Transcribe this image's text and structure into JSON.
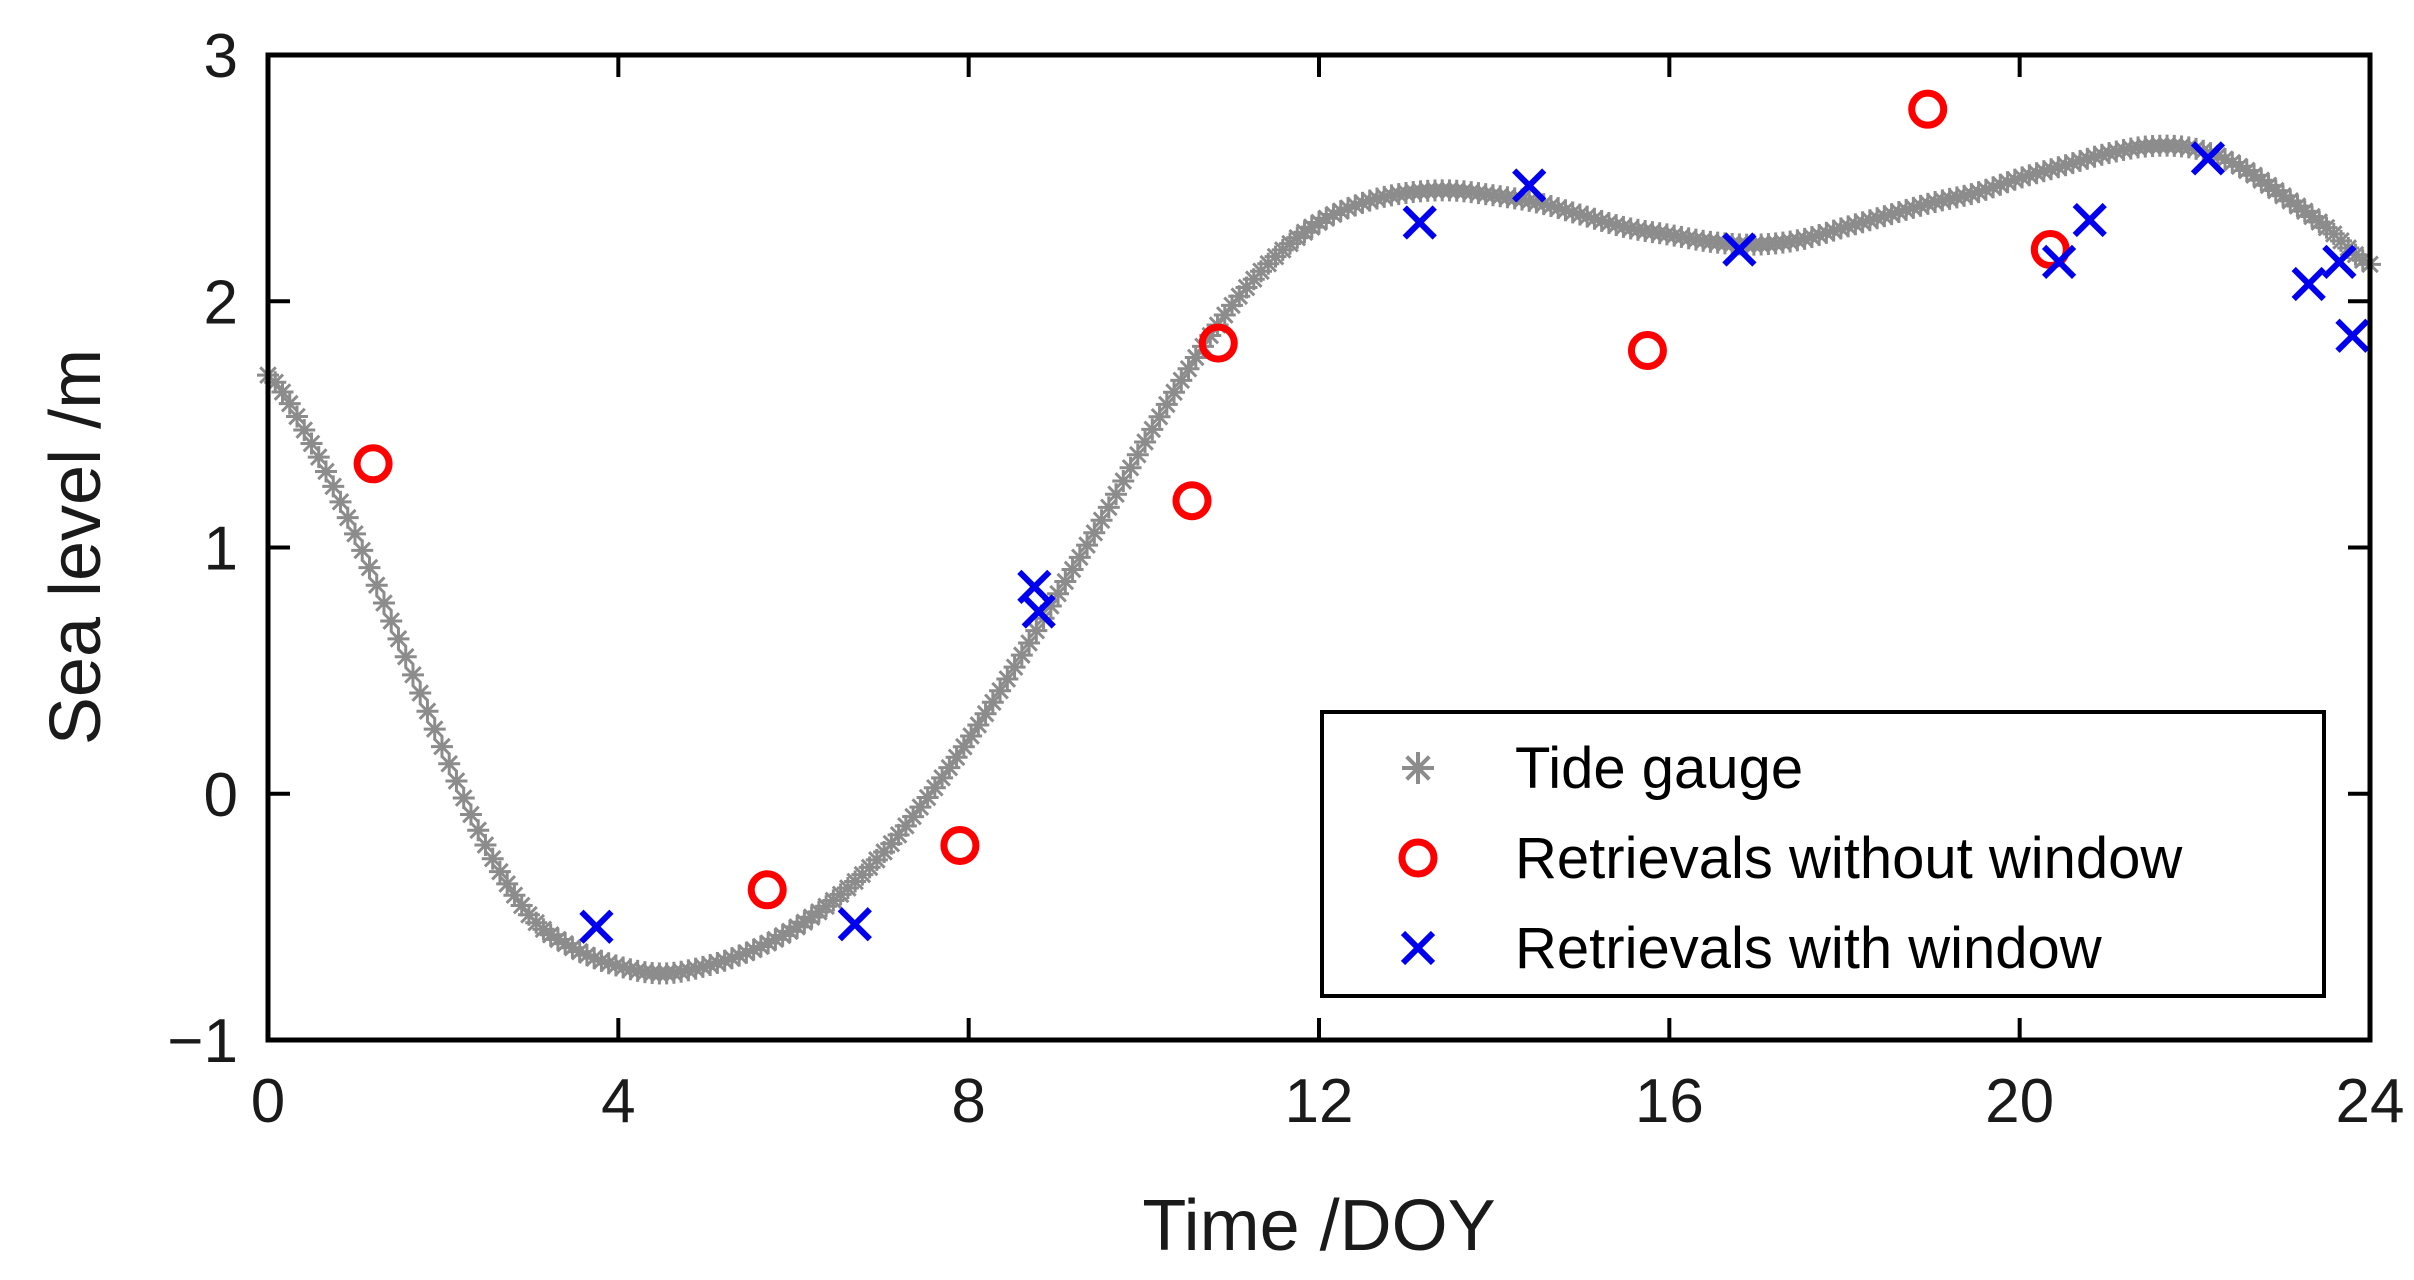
{
  "chart_data": {
    "type": "scatter",
    "title": "",
    "xlabel": "Time /DOY",
    "ylabel": "Sea level /m",
    "xlim": [
      0,
      24
    ],
    "ylim": [
      -1,
      3
    ],
    "xticks": [
      0,
      4,
      8,
      12,
      16,
      20,
      24
    ],
    "xtick_labels": [
      "0",
      "4",
      "8",
      "12",
      "16",
      "20",
      "24"
    ],
    "yticks": [
      -1,
      0,
      1,
      2,
      3
    ],
    "ytick_labels": [
      "−1",
      "0",
      "1",
      "2",
      "3"
    ],
    "grid": false,
    "legend_position": "bottom-right",
    "series": [
      {
        "name": "Tide gauge",
        "marker": "asterisk",
        "color": "#8c8c8c",
        "x": [
          0.0,
          0.5,
          1.0,
          1.5,
          2.0,
          2.5,
          3.0,
          3.5,
          4.0,
          4.5,
          5.0,
          5.5,
          6.0,
          6.5,
          7.0,
          7.5,
          8.0,
          8.5,
          9.0,
          9.5,
          10.0,
          10.5,
          11.0,
          11.5,
          12.0,
          12.5,
          13.0,
          13.5,
          14.0,
          14.5,
          15.0,
          15.5,
          16.0,
          16.5,
          17.0,
          17.5,
          18.0,
          18.5,
          19.0,
          19.5,
          20.0,
          20.5,
          21.0,
          21.5,
          22.0,
          22.5,
          23.0,
          23.5,
          24.0
        ],
        "y": [
          1.7,
          1.42,
          1.05,
          0.62,
          0.18,
          -0.22,
          -0.5,
          -0.63,
          -0.7,
          -0.73,
          -0.7,
          -0.64,
          -0.55,
          -0.42,
          -0.25,
          -0.03,
          0.22,
          0.5,
          0.8,
          1.1,
          1.42,
          1.72,
          1.98,
          2.18,
          2.32,
          2.4,
          2.44,
          2.45,
          2.43,
          2.4,
          2.35,
          2.3,
          2.27,
          2.24,
          2.23,
          2.25,
          2.3,
          2.35,
          2.4,
          2.44,
          2.5,
          2.55,
          2.6,
          2.63,
          2.62,
          2.55,
          2.43,
          2.3,
          2.15
        ]
      },
      {
        "name": "Retrievals without window",
        "marker": "circle",
        "color": "#ff0000",
        "x": [
          1.2,
          5.7,
          7.9,
          10.55,
          10.85,
          15.75,
          18.95,
          20.35
        ],
        "y": [
          1.34,
          -0.39,
          -0.21,
          1.19,
          1.83,
          1.8,
          2.78,
          2.21
        ]
      },
      {
        "name": "Retrievals with window",
        "marker": "x",
        "color": "#0000ee",
        "x": [
          3.75,
          6.7,
          8.75,
          8.8,
          13.15,
          14.4,
          16.8,
          20.45,
          20.8,
          22.15,
          23.3,
          23.65,
          23.8
        ],
        "y": [
          -0.54,
          -0.53,
          0.84,
          0.74,
          2.32,
          2.47,
          2.21,
          2.16,
          2.33,
          2.58,
          2.07,
          2.16,
          1.86
        ]
      }
    ]
  }
}
